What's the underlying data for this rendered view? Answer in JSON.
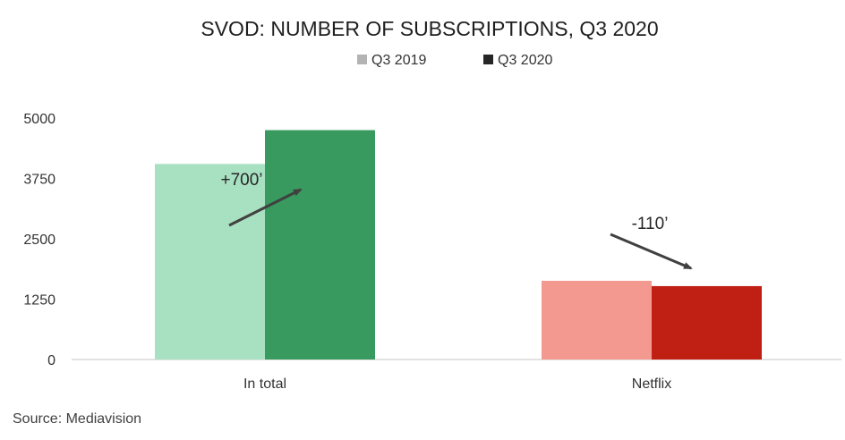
{
  "chart_data": {
    "type": "bar",
    "title": "SVOD: NUMBER OF SUBSCRIPTIONS, Q3 2020",
    "categories": [
      "In total",
      "Netflix"
    ],
    "series": [
      {
        "name": "Q3 2019",
        "values": [
          4050,
          1630
        ]
      },
      {
        "name": "Q3 2020",
        "values": [
          4750,
          1520
        ]
      }
    ],
    "colors": [
      [
        "#a8e0c2",
        "#389a5e"
      ],
      [
        "#f4998f",
        "#c01f14"
      ]
    ],
    "legend_colors": [
      "#b3b3b3",
      "#262626"
    ],
    "legend_position": "top",
    "ylim": [
      0,
      5000
    ],
    "yticks": [
      0,
      1250,
      2500,
      3750,
      5000
    ],
    "grid": false,
    "annotations": [
      {
        "category": "In total",
        "text": "+700’",
        "direction": "up"
      },
      {
        "category": "Netflix",
        "text": "-110’",
        "direction": "down"
      }
    ]
  },
  "source": "Source: Mediavision"
}
